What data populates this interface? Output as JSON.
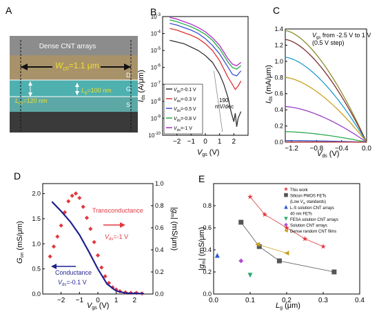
{
  "panels": {
    "A": {
      "letter": "A",
      "top_label": "Dense CNT arrays",
      "wch_label": "W",
      "wch_sub": "ch",
      "wch_value": "=1.1 μm",
      "lg_label": "L",
      "lg_sub": "g",
      "lg_value": "=100 nm",
      "lch_label": "L",
      "lch_sub": "ch",
      "lch_value": "=120 nm",
      "terminals": [
        "D",
        "G",
        "S"
      ]
    },
    "B": {
      "letter": "B",
      "annotation_value": "190",
      "annotation_unit": "mV/dec"
    },
    "C": {
      "letter": "C",
      "annotation_line1": "V",
      "annotation_line1_sub": "gs",
      "annotation_line1_rest": " from -2.5 V to 1 V",
      "annotation_line2": "(0.5 V step)"
    },
    "D": {
      "letter": "D",
      "transconductance_label": "Transconductance",
      "trans_v": "V",
      "trans_v_sub": "ds",
      "trans_v_value": "=-1 V",
      "conductance_label": "Conductance",
      "cond_v": "V",
      "cond_v_sub": "ds",
      "cond_v_value": "=-0.1 V"
    },
    "E": {
      "letter": "E"
    }
  },
  "colors": {
    "red": "#e0393e",
    "navy": "#1f1f8f",
    "gray": "#555555"
  },
  "chart_data": [
    {
      "panel": "B",
      "type": "line",
      "xlabel": "V_gs (V)",
      "ylabel": "I_ds (A/μm)",
      "xlim": [
        -3,
        3
      ],
      "ylim_log10": [
        -10,
        -3
      ],
      "y_scale": "log",
      "xticks": [
        -2,
        -1,
        0,
        1,
        2
      ],
      "yticks": [
        "10^-3",
        "10^-4",
        "10^-5",
        "10^-6",
        "10^-7",
        "10^-8",
        "10^-9",
        "10^-10"
      ],
      "legend_position": "bottom-left",
      "series": [
        {
          "name": "V_ds=-0.1 V",
          "color": "#333333",
          "x": [
            -2.5,
            -2,
            -1.5,
            -1,
            -0.5,
            0,
            0.5,
            1,
            1.3,
            1.6,
            1.8,
            2,
            2.1,
            2.2,
            2.3,
            2.5
          ],
          "log10_y": [
            -4.4,
            -4.5,
            -4.6,
            -4.8,
            -5.0,
            -5.3,
            -5.7,
            -6.4,
            -7.0,
            -7.8,
            -8.6,
            -9.2,
            -8.7,
            -9.5,
            -9.0,
            -8.6
          ]
        },
        {
          "name": "V_ds=-0.3 V",
          "color": "#e03030",
          "x": [
            -2.5,
            -2,
            -1.5,
            -1,
            -0.5,
            0,
            0.5,
            1,
            1.3,
            1.6,
            1.9,
            2.1,
            2.3,
            2.5
          ],
          "log10_y": [
            -3.7,
            -3.8,
            -3.95,
            -4.1,
            -4.3,
            -4.6,
            -5.0,
            -5.6,
            -6.1,
            -6.6,
            -7.0,
            -7.3,
            -7.1,
            -6.8
          ]
        },
        {
          "name": "V_ds=-0.5 V",
          "color": "#3a4fd0",
          "x": [
            -2.5,
            -2,
            -1.5,
            -1,
            -0.5,
            0,
            0.5,
            1,
            1.3,
            1.6,
            1.9,
            2.2,
            2.5
          ],
          "log10_y": [
            -3.4,
            -3.5,
            -3.65,
            -3.8,
            -4.0,
            -4.3,
            -4.7,
            -5.2,
            -5.6,
            -6.0,
            -6.4,
            -6.5,
            -6.2
          ]
        },
        {
          "name": "V_ds=-0.8 V",
          "color": "#22aa44",
          "x": [
            -2.5,
            -2,
            -1.5,
            -1,
            -0.5,
            0,
            0.5,
            1,
            1.3,
            1.6,
            1.9,
            2.2,
            2.5
          ],
          "log10_y": [
            -3.2,
            -3.3,
            -3.45,
            -3.6,
            -3.8,
            -4.05,
            -4.4,
            -4.9,
            -5.3,
            -5.7,
            -6.0,
            -6.1,
            -5.9
          ]
        },
        {
          "name": "V_ds=-1 V",
          "color": "#b026c8",
          "x": [
            -2.5,
            -2,
            -1.5,
            -1,
            -0.5,
            0,
            0.5,
            1,
            1.3,
            1.6,
            1.9,
            2.2,
            2.5
          ],
          "log10_y": [
            -3.05,
            -3.15,
            -3.3,
            -3.45,
            -3.65,
            -3.9,
            -4.25,
            -4.7,
            -5.1,
            -5.5,
            -5.8,
            -5.9,
            -5.7
          ]
        }
      ]
    },
    {
      "panel": "C",
      "type": "line",
      "xlabel": "V_ds (V)",
      "ylabel": "I_ds (mA/μm)",
      "xlim": [
        -1.3,
        0
      ],
      "ylim": [
        0,
        1.4
      ],
      "xticks": [
        -1.2,
        -0.8,
        -0.4,
        0.0
      ],
      "yticks": [
        0.0,
        0.2,
        0.4,
        0.6,
        0.8,
        1.0,
        1.2,
        1.4
      ],
      "series": [
        {
          "color": "#8a8a2a",
          "i_at_neg_1_3": 1.38
        },
        {
          "color": "#7a2e2e",
          "i_at_neg_1_3": 1.27
        },
        {
          "color": "#1e9bd0",
          "i_at_neg_1_3": 1.05
        },
        {
          "color": "#c8a01e",
          "i_at_neg_1_3": 0.8
        },
        {
          "color": "#9a3cc8",
          "i_at_neg_1_3": 0.44
        },
        {
          "color": "#2aa84a",
          "i_at_neg_1_3": 0.13
        },
        {
          "color": "#2a4cc8",
          "i_at_neg_1_3": 0.02
        },
        {
          "color": "#c83030",
          "i_at_neg_1_3": 0.003
        }
      ]
    },
    {
      "panel": "D",
      "type": "scatter",
      "xlabel": "V_gs (V)",
      "ylabel_left": "G_on (mS/μm)",
      "ylabel_right": "|g_m| (mS/μm)",
      "xlim": [
        -3,
        3
      ],
      "ylim_left": [
        0,
        2.2
      ],
      "ylim_right": [
        0,
        1.0
      ],
      "xticks": [
        -2,
        -1,
        0,
        1,
        2
      ],
      "yticks_left": [
        0.0,
        0.5,
        1.0,
        1.5,
        2.0
      ],
      "yticks_right": [
        0.0,
        0.2,
        0.4,
        0.6,
        0.8,
        1.0
      ],
      "series": [
        {
          "name": "Transconductance",
          "axis": "right",
          "color": "#e0393e",
          "x": [
            -2.6,
            -2.4,
            -2.2,
            -2.0,
            -1.8,
            -1.6,
            -1.4,
            -1.2,
            -1.0,
            -0.8,
            -0.6,
            -0.4,
            -0.2,
            0.0,
            0.2,
            0.4,
            0.6,
            0.8,
            1.0,
            1.2,
            1.5,
            1.8,
            2.1,
            2.4
          ],
          "y": [
            0.34,
            0.43,
            0.52,
            0.62,
            0.74,
            0.84,
            0.89,
            0.91,
            0.87,
            0.79,
            0.69,
            0.59,
            0.47,
            0.35,
            0.24,
            0.16,
            0.1,
            0.06,
            0.04,
            0.025,
            0.015,
            0.01,
            0.01,
            0.005
          ]
        },
        {
          "name": "Conductance",
          "axis": "left",
          "color": "#1f1f8f",
          "x": [
            -2.5,
            -2.0,
            -1.5,
            -1.0,
            -0.5,
            0.0,
            0.5,
            1.0,
            1.5,
            2.0,
            2.5
          ],
          "y": [
            1.84,
            1.65,
            1.44,
            1.18,
            0.85,
            0.5,
            0.2,
            0.06,
            0.02,
            0.01,
            0.01
          ]
        }
      ]
    },
    {
      "panel": "E",
      "type": "scatter",
      "xlabel": "L_g (μm)",
      "ylabel": "|g_m| (mS/μm)",
      "xlim": [
        0,
        0.4
      ],
      "ylim": [
        0,
        1.0
      ],
      "xticks": [
        0.0,
        0.1,
        0.2,
        0.3,
        0.4
      ],
      "yticks": [
        0.0,
        0.2,
        0.4,
        0.6,
        0.8
      ],
      "legend_position": "top-right",
      "series": [
        {
          "name": "This work",
          "color": "#e0393e",
          "marker": "star",
          "connected": true,
          "x": [
            0.1,
            0.14,
            0.2,
            0.25,
            0.3
          ],
          "y": [
            0.88,
            0.72,
            0.6,
            0.5,
            0.43
          ]
        },
        {
          "name": "Silicon PMOS FETs (Low V_th standards)",
          "color": "#555555",
          "marker": "square",
          "connected": true,
          "x": [
            0.075,
            0.125,
            0.18,
            0.33
          ],
          "y": [
            0.65,
            0.43,
            0.3,
            0.2
          ]
        },
        {
          "name": "L-S solution CNT arrays 40 nm FETs",
          "color": "#2a5ad0",
          "marker": "triangle-up",
          "x": [
            0.01
          ],
          "y": [
            0.35
          ]
        },
        {
          "name": "FESA solution CNT arrays",
          "color": "#2aa870",
          "marker": "triangle-down",
          "x": [
            0.1
          ],
          "y": [
            0.17
          ]
        },
        {
          "name": "Solution CNT arrays",
          "color": "#b050d0",
          "marker": "diamond",
          "x": [
            0.075
          ],
          "y": [
            0.3
          ]
        },
        {
          "name": "Dense random CNT films",
          "color": "#c8a01e",
          "marker": "triangle-left",
          "connected": true,
          "x": [
            0.12,
            0.2
          ],
          "y": [
            0.45,
            0.37
          ]
        }
      ]
    }
  ]
}
